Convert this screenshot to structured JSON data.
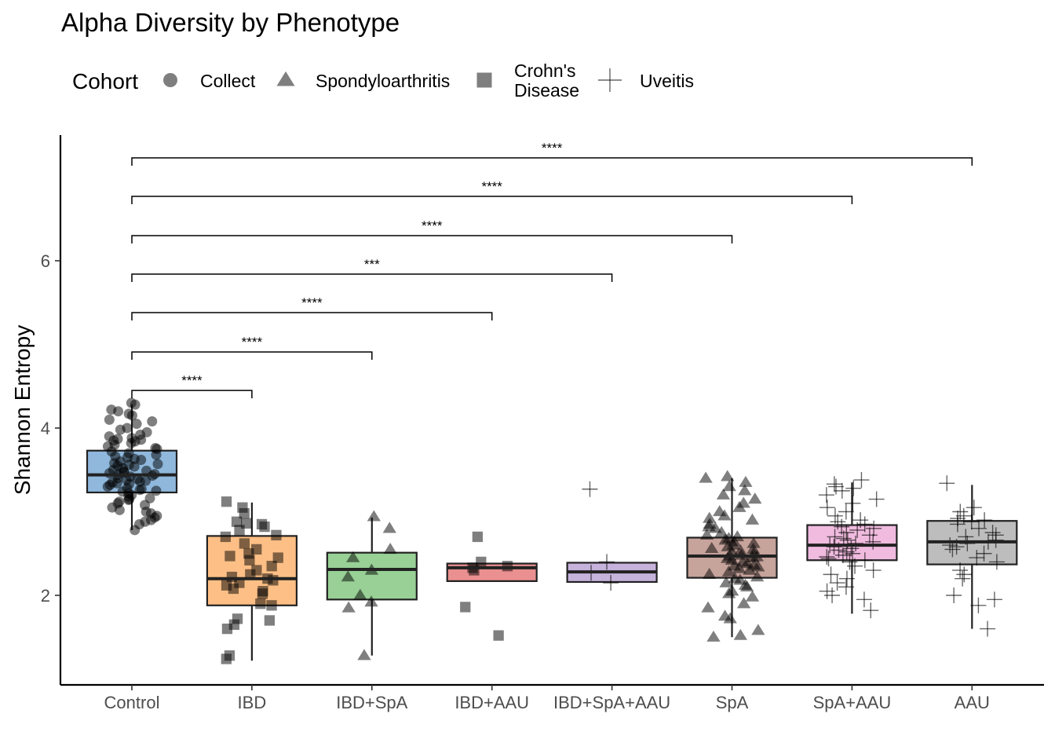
{
  "chart_data": {
    "type": "boxplot",
    "title": "Alpha Diversity by Phenotype",
    "ylabel": "Shannon Entropy",
    "xlabel": "",
    "ylim": [
      0.95,
      7.55
    ],
    "yticks": [
      2,
      4,
      6
    ],
    "grid": false,
    "legend": {
      "title": "Cohort",
      "placement": "top-left",
      "entries": [
        {
          "label": "Collect",
          "shape": "circle"
        },
        {
          "label": "Spondyloarthritis",
          "shape": "triangle"
        },
        {
          "label": "Crohn's\nDisease",
          "shape": "square"
        },
        {
          "label": "Uveitis",
          "shape": "plus"
        }
      ]
    },
    "categories": [
      "Control",
      "IBD",
      "IBD+SpA",
      "IBD+AAU",
      "IBD+SpA+AAU",
      "SpA",
      "SpA+AAU",
      "AAU"
    ],
    "boxes": [
      {
        "category": "Control",
        "color": "#8fb8dc",
        "q1": 3.23,
        "median": 3.44,
        "q3": 3.73,
        "whisker_low": 2.78,
        "whisker_high": 4.28,
        "cohort": "Collect",
        "points": [
          4.3,
          4.28,
          4.22,
          4.2,
          4.17,
          4.15,
          4.1,
          4.08,
          4.05,
          4.0,
          3.98,
          3.95,
          3.92,
          3.9,
          3.88,
          3.87,
          3.86,
          3.85,
          3.84,
          3.82,
          3.8,
          3.78,
          3.76,
          3.75,
          3.72,
          3.7,
          3.68,
          3.66,
          3.65,
          3.63,
          3.62,
          3.6,
          3.58,
          3.57,
          3.56,
          3.55,
          3.54,
          3.52,
          3.5,
          3.49,
          3.48,
          3.47,
          3.46,
          3.45,
          3.44,
          3.43,
          3.42,
          3.4,
          3.39,
          3.38,
          3.37,
          3.36,
          3.35,
          3.34,
          3.33,
          3.32,
          3.3,
          3.28,
          3.27,
          3.26,
          3.25,
          3.24,
          3.22,
          3.2,
          3.18,
          3.16,
          3.15,
          3.14,
          3.12,
          3.1,
          3.08,
          3.05,
          3.02,
          3.0,
          2.98,
          2.95,
          2.93,
          2.9,
          2.88,
          2.85,
          2.78
        ]
      },
      {
        "category": "IBD",
        "color": "#fdbf85",
        "q1": 1.88,
        "median": 2.2,
        "q3": 2.71,
        "whisker_low": 1.22,
        "whisker_high": 3.11,
        "cohort": "Crohn's Disease",
        "points": [
          3.12,
          3.05,
          2.98,
          2.88,
          2.86,
          2.85,
          2.82,
          2.78,
          2.72,
          2.7,
          2.62,
          2.55,
          2.5,
          2.47,
          2.45,
          2.42,
          2.35,
          2.3,
          2.25,
          2.22,
          2.2,
          2.18,
          2.15,
          2.12,
          2.08,
          2.05,
          2.02,
          1.9,
          1.88,
          1.72,
          1.7,
          1.65,
          1.6,
          1.28,
          1.24
        ]
      },
      {
        "category": "IBD+SpA",
        "color": "#98d095",
        "q1": 1.95,
        "median": 2.31,
        "q3": 2.51,
        "whisker_low": 1.28,
        "whisker_high": 2.93,
        "cohort": "Spondyloarthritis",
        "points": [
          2.94,
          2.8,
          2.55,
          2.45,
          2.3,
          2.22,
          2.0,
          1.92,
          1.85,
          1.28
        ]
      },
      {
        "category": "IBD+AAU",
        "color": "#ea9090",
        "q1": 2.17,
        "median": 2.33,
        "q3": 2.38,
        "whisker_low": 2.17,
        "whisker_high": 2.38,
        "cohort": "Crohn's Disease",
        "points": [
          2.7,
          2.4,
          2.35,
          2.33,
          2.3,
          1.86,
          1.52
        ]
      },
      {
        "category": "IBD+SpA+AAU",
        "color": "#c6b3dc",
        "q1": 2.16,
        "median": 2.28,
        "q3": 2.39,
        "whisker_low": 2.16,
        "whisker_high": 2.39,
        "cohort": "Uveitis",
        "points": [
          3.27,
          2.4,
          2.27,
          2.15
        ]
      },
      {
        "category": "SpA",
        "color": "#c6a39b",
        "q1": 2.21,
        "median": 2.47,
        "q3": 2.69,
        "whisker_low": 1.5,
        "whisker_high": 3.4,
        "cohort": "Spondyloarthritis",
        "points": [
          3.42,
          3.4,
          3.35,
          3.3,
          3.25,
          3.2,
          3.15,
          3.1,
          3.05,
          3.0,
          2.95,
          2.92,
          2.9,
          2.85,
          2.82,
          2.8,
          2.75,
          2.72,
          2.7,
          2.68,
          2.66,
          2.64,
          2.62,
          2.6,
          2.58,
          2.56,
          2.55,
          2.53,
          2.52,
          2.5,
          2.48,
          2.47,
          2.46,
          2.45,
          2.44,
          2.42,
          2.4,
          2.38,
          2.36,
          2.35,
          2.34,
          2.32,
          2.3,
          2.28,
          2.25,
          2.22,
          2.2,
          2.18,
          2.15,
          2.12,
          2.1,
          2.05,
          2.02,
          1.98,
          1.9,
          1.85,
          1.75,
          1.72,
          1.58,
          1.52,
          1.5
        ]
      },
      {
        "category": "SpA+AAU",
        "color": "#f0bbdf",
        "q1": 2.42,
        "median": 2.6,
        "q3": 2.84,
        "whisker_low": 1.78,
        "whisker_high": 3.35,
        "cohort": "Uveitis",
        "points": [
          3.38,
          3.33,
          3.3,
          3.28,
          3.25,
          3.2,
          3.15,
          3.1,
          3.05,
          3.0,
          2.95,
          2.9,
          2.88,
          2.85,
          2.82,
          2.8,
          2.78,
          2.75,
          2.72,
          2.7,
          2.68,
          2.66,
          2.64,
          2.62,
          2.6,
          2.58,
          2.56,
          2.54,
          2.52,
          2.5,
          2.48,
          2.46,
          2.44,
          2.42,
          2.4,
          2.35,
          2.3,
          2.25,
          2.2,
          2.15,
          2.1,
          2.05,
          2.0,
          1.95,
          1.82
        ]
      },
      {
        "category": "AAU",
        "color": "#bdbdbd",
        "q1": 2.37,
        "median": 2.64,
        "q3": 2.89,
        "whisker_low": 1.6,
        "whisker_high": 3.32,
        "cohort": "Uveitis",
        "points": [
          3.34,
          3.05,
          3.0,
          2.95,
          2.92,
          2.9,
          2.88,
          2.85,
          2.8,
          2.75,
          2.72,
          2.7,
          2.66,
          2.64,
          2.62,
          2.6,
          2.58,
          2.55,
          2.5,
          2.45,
          2.4,
          2.3,
          2.25,
          2.2,
          2.0,
          1.95,
          1.88,
          1.6
        ]
      }
    ],
    "comparisons": [
      {
        "from": "Control",
        "to": "IBD",
        "label": "****",
        "y": 4.45
      },
      {
        "from": "Control",
        "to": "IBD+SpA",
        "label": "****",
        "y": 4.91
      },
      {
        "from": "Control",
        "to": "IBD+AAU",
        "label": "****",
        "y": 5.38
      },
      {
        "from": "Control",
        "to": "IBD+SpA+AAU",
        "label": "***",
        "y": 5.84
      },
      {
        "from": "Control",
        "to": "SpA",
        "label": "****",
        "y": 6.3
      },
      {
        "from": "Control",
        "to": "SpA+AAU",
        "label": "****",
        "y": 6.77
      },
      {
        "from": "Control",
        "to": "AAU",
        "label": "****",
        "y": 7.23
      }
    ]
  }
}
